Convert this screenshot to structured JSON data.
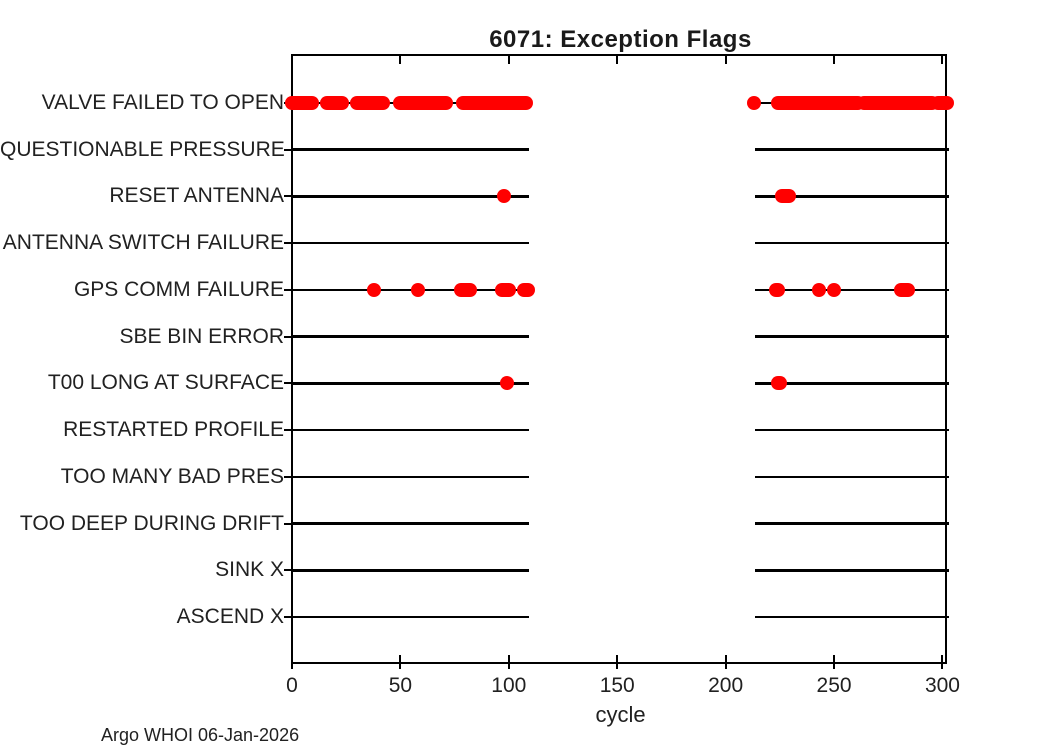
{
  "title": "6071: Exception Flags",
  "footer": "Argo WHOI 06-Jan-2026",
  "chart_data": {
    "type": "scatter",
    "title": "6071: Exception Flags",
    "xlabel": "cycle",
    "ylabel": "",
    "xlim": [
      0,
      303
    ],
    "x_ticks": [
      0,
      50,
      100,
      150,
      200,
      250,
      300
    ],
    "grid": false,
    "legend": "none",
    "marker_color": "#ff0000",
    "line_color": "#000000",
    "categories": [
      "VALVE FAILED TO OPEN",
      "QUESTIONABLE PRESSURE",
      "RESET ANTENNA",
      "ANTENNA SWITCH FAILURE",
      "GPS COMM FAILURE",
      "SBE BIN ERROR",
      "T00 LONG AT SURFACE",
      "RESTARTED PROFILE",
      "TOO MANY BAD PRES",
      "TOO DEEP DURING DRIFT",
      "SINK X",
      "ASCEND X"
    ],
    "coverage_segments": [
      [
        0,
        109.5
      ],
      [
        213.3,
        303
      ]
    ],
    "series": [
      {
        "name": "VALVE FAILED TO OPEN",
        "flag_cycle_ranges": [
          [
            0,
            9
          ],
          [
            16,
            23
          ],
          [
            30,
            42
          ],
          [
            50,
            71
          ],
          [
            79,
            108
          ],
          [
            213,
            213
          ],
          [
            224,
            261
          ],
          [
            264,
            295
          ],
          [
            298,
            302
          ]
        ]
      },
      {
        "name": "QUESTIONABLE PRESSURE",
        "flag_cycle_ranges": []
      },
      {
        "name": "RESET ANTENNA",
        "flag_cycle_ranges": [
          [
            98,
            98
          ],
          [
            226,
            229
          ]
        ]
      },
      {
        "name": "ANTENNA SWITCH FAILURE",
        "flag_cycle_ranges": []
      },
      {
        "name": "GPS COMM FAILURE",
        "flag_cycle_ranges": [
          [
            38,
            38
          ],
          [
            58,
            58
          ],
          [
            78,
            82
          ],
          [
            97,
            100
          ],
          [
            107,
            109
          ],
          [
            223,
            224
          ],
          [
            243,
            243
          ],
          [
            250,
            250
          ],
          [
            281,
            284
          ]
        ]
      },
      {
        "name": "SBE BIN ERROR",
        "flag_cycle_ranges": []
      },
      {
        "name": "T00 LONG AT SURFACE",
        "flag_cycle_ranges": [
          [
            99,
            99
          ],
          [
            224,
            225
          ]
        ]
      },
      {
        "name": "RESTARTED PROFILE",
        "flag_cycle_ranges": []
      },
      {
        "name": "TOO MANY BAD PRES",
        "flag_cycle_ranges": []
      },
      {
        "name": "TOO DEEP DURING DRIFT",
        "flag_cycle_ranges": []
      },
      {
        "name": "SINK X",
        "flag_cycle_ranges": []
      },
      {
        "name": "ASCEND X",
        "flag_cycle_ranges": []
      }
    ]
  }
}
